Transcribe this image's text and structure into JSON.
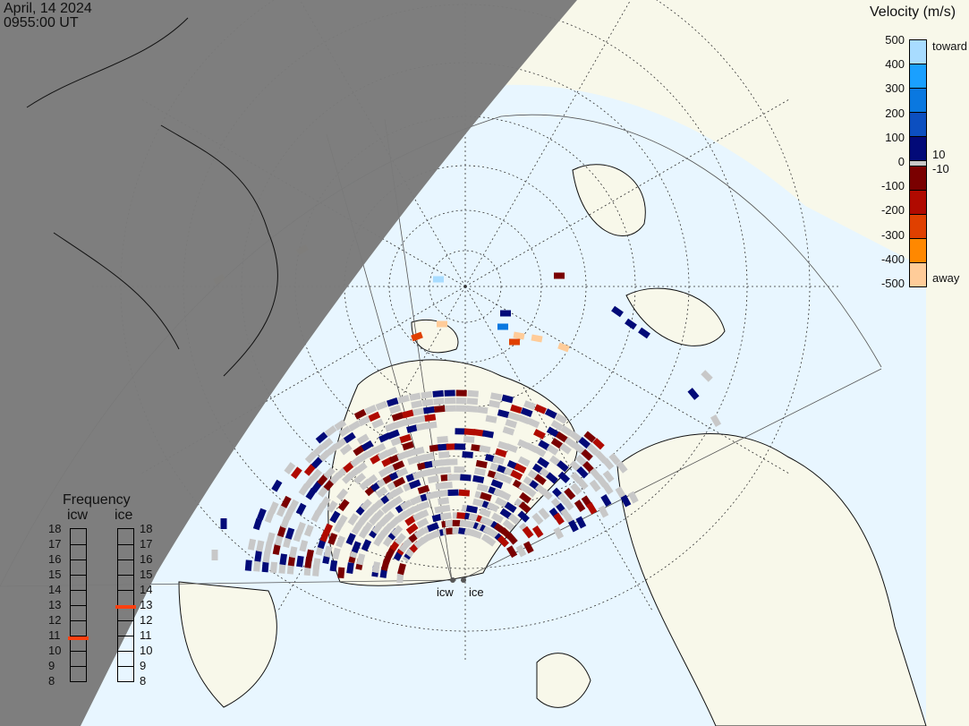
{
  "header": {
    "date": "April, 14 2024",
    "time": "0955:00 UT"
  },
  "colorbar": {
    "title": "Velocity (m/s)",
    "ticks": [
      "500",
      "400",
      "300",
      "200",
      "100",
      "0",
      "-100",
      "-200",
      "-300",
      "-400",
      "-500"
    ],
    "label_top": "toward",
    "label_bottom": "away",
    "gs_upper": "10",
    "gs_lower": "-10",
    "colors_toward": [
      "#a8dcff",
      "#1aa0ff",
      "#0a78e0",
      "#0c4fc0",
      "#020a78"
    ],
    "colors_away": [
      "#7a0000",
      "#b00a00",
      "#e04000",
      "#ff8800",
      "#ffcc99"
    ],
    "ground_scatter_color": "#c8c8c8"
  },
  "frequency": {
    "title": "Frequency",
    "ticks": [
      "18",
      "17",
      "16",
      "15",
      "14",
      "13",
      "12",
      "11",
      "10",
      "9",
      "8"
    ],
    "radars": [
      {
        "name": "icw",
        "freq_mhz": 10.8
      },
      {
        "name": "ice",
        "freq_mhz": 12.9
      }
    ],
    "marker_color": "#ff4010"
  },
  "map": {
    "radar_labels": [
      "icw",
      "ice"
    ],
    "night_color": "#7a7a7a",
    "ocean_color": "#e8f6ff",
    "land_color": "#f8f8ea"
  }
}
